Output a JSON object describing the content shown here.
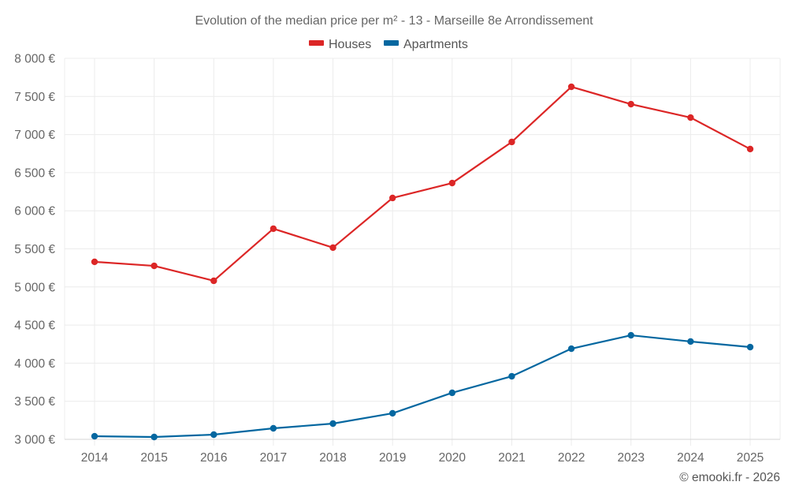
{
  "chart_data": {
    "type": "line",
    "title": "Evolution of the median price per m² - 13 - Marseille 8e Arrondissement",
    "xlabel": "",
    "ylabel": "",
    "categories": [
      "2014",
      "2015",
      "2016",
      "2017",
      "2018",
      "2019",
      "2020",
      "2021",
      "2022",
      "2023",
      "2024",
      "2025"
    ],
    "ylim": [
      3000,
      8000
    ],
    "yticks": [
      3000,
      3500,
      4000,
      4500,
      5000,
      5500,
      6000,
      6500,
      7000,
      7500,
      8000
    ],
    "ytick_labels": [
      "3 000 €",
      "3 500 €",
      "4 000 €",
      "4 500 €",
      "5 000 €",
      "5 500 €",
      "6 000 €",
      "6 500 €",
      "7 000 €",
      "7 500 €",
      "8 000 €"
    ],
    "grid": true,
    "legend_position": "top-center",
    "series": [
      {
        "name": "Houses",
        "color": "#dc2626",
        "values": [
          5330,
          5277,
          5081,
          5765,
          5516,
          6168,
          6364,
          6903,
          7627,
          7399,
          7223,
          6810
        ]
      },
      {
        "name": "Apartments",
        "color": "#0467a0",
        "values": [
          3041,
          3031,
          3062,
          3145,
          3207,
          3342,
          3611,
          3828,
          4190,
          4366,
          4284,
          4211
        ]
      }
    ],
    "credit": "© emooki.fr - 2026"
  }
}
